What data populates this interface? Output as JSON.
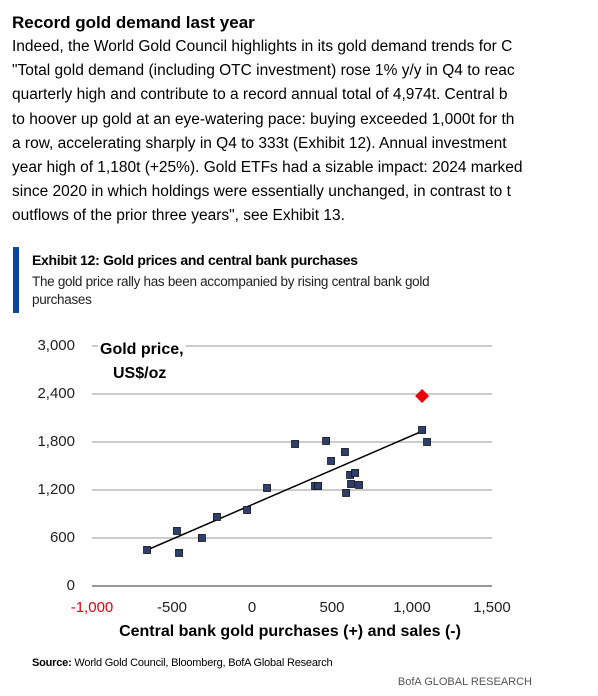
{
  "header": {
    "title": "Record gold demand last year"
  },
  "body": {
    "lines": [
      "Indeed, the World Gold Council highlights in its gold demand trends for C",
      "\"Total gold demand (including OTC investment) rose 1% y/y in Q4 to reac",
      "quarterly high and contribute to a record annual total of 4,974t. Central b",
      "to hoover up gold at an eye-watering pace: buying exceeded 1,000t for th",
      "a row, accelerating sharply in Q4 to 333t (Exhibit 12). Annual investment",
      "year high of 1,180t (+25%). Gold ETFs had a sizable impact: 2024 marked",
      "since 2020 in which holdings were essentially unchanged, in contrast to t",
      "outflows of the prior three years\", see Exhibit 13."
    ]
  },
  "exhibit": {
    "title": "Exhibit 12: Gold prices and central bank purchases",
    "subtitle_lines": [
      "The gold price rally has been accompanied by rising central bank gold",
      "purchases"
    ]
  },
  "chart_data": {
    "type": "scatter",
    "y_label_lines": [
      "Gold price,",
      "US$/oz"
    ],
    "x_label": "Central bank gold purchases (+) and sales (-)",
    "xlim": [
      -1000,
      1500
    ],
    "xticks": [
      {
        "value": -1000,
        "label": "-1,000",
        "color": "#e8000b"
      },
      -500,
      0,
      500,
      {
        "value": 1000,
        "label": "1,000"
      },
      {
        "value": 1500,
        "label": "1,500"
      }
    ],
    "ylim": [
      0,
      3000
    ],
    "yticks": [
      0,
      600,
      {
        "value": 1200,
        "label": "1,200"
      },
      {
        "value": 1800,
        "label": "1,800"
      },
      {
        "value": 2400,
        "label": "2,400"
      },
      {
        "value": 3000,
        "label": "3,000"
      }
    ],
    "grid": true,
    "series": [
      {
        "color": "#2e3f6e",
        "marker": "square",
        "x": [
          -656,
          -469,
          -456,
          -313,
          -219,
          -31,
          94,
          269,
          394,
          413,
          463,
          494,
          581,
          588,
          613,
          619,
          644,
          669,
          1063,
          1094
        ],
        "values": [
          450,
          688,
          413,
          600,
          863,
          950,
          1225,
          1775,
          1250,
          1250,
          1813,
          1563,
          1675,
          1163,
          1388,
          1275,
          1413,
          1263,
          1950,
          1800
        ]
      },
      {
        "color": "#e8000b",
        "marker": "diamond",
        "x": [
          1063
        ],
        "values": [
          2375
        ]
      }
    ],
    "fit_line": {
      "color": "#000000",
      "x": [
        -656,
        1081
      ],
      "values": [
        450,
        1950
      ]
    }
  },
  "source": {
    "label": "Source:",
    "text": "World Gold Council, Bloomberg, BofA Global Research"
  },
  "footer": "BofA GLOBAL RESEARCH"
}
